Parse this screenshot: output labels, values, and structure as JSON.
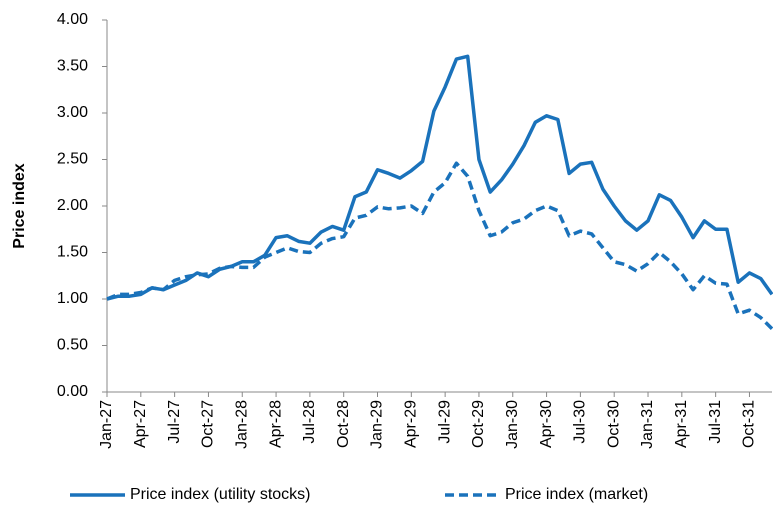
{
  "chart_data": {
    "type": "line",
    "y_label": "Price index",
    "categories": [
      "Jan-27",
      null,
      null,
      "Apr-27",
      null,
      null,
      "Jul-27",
      null,
      null,
      "Oct-27",
      null,
      null,
      "Jan-28",
      null,
      null,
      "Apr-28",
      null,
      null,
      "Jul-28",
      null,
      null,
      "Oct-28",
      null,
      null,
      "Jan-29",
      null,
      null,
      "Apr-29",
      null,
      null,
      "Jul-29",
      null,
      null,
      "Oct-29",
      null,
      null,
      "Jan-30",
      null,
      null,
      "Apr-30",
      null,
      null,
      "Jul-30",
      null,
      null,
      "Oct-30",
      null,
      null,
      "Jan-31",
      null,
      null,
      "Apr-31",
      null,
      null,
      "Jul-31",
      null,
      null,
      "Oct-31",
      null,
      null
    ],
    "series": [
      {
        "name": "Price index (utility stocks)",
        "color": "#1a72bb",
        "dash": false,
        "values": [
          1.0,
          1.03,
          1.03,
          1.05,
          1.12,
          1.1,
          1.15,
          1.2,
          1.28,
          1.24,
          1.32,
          1.35,
          1.4,
          1.4,
          1.47,
          1.66,
          1.68,
          1.62,
          1.6,
          1.72,
          1.78,
          1.74,
          2.1,
          2.15,
          2.39,
          2.35,
          2.3,
          2.38,
          2.48,
          3.02,
          3.28,
          3.58,
          3.61,
          2.5,
          2.15,
          2.28,
          2.45,
          2.65,
          2.9,
          2.97,
          2.93,
          2.35,
          2.45,
          2.47,
          2.18,
          2.0,
          1.84,
          1.74,
          1.84,
          2.12,
          2.06,
          1.88,
          1.66,
          1.84,
          1.75,
          1.75,
          1.18,
          1.28,
          1.22,
          1.05
        ]
      },
      {
        "name": "Price index (market)",
        "color": "#1a72bb",
        "dash": true,
        "values": [
          1.0,
          1.05,
          1.05,
          1.07,
          1.12,
          1.1,
          1.2,
          1.24,
          1.26,
          1.27,
          1.33,
          1.35,
          1.34,
          1.34,
          1.45,
          1.5,
          1.55,
          1.51,
          1.5,
          1.6,
          1.65,
          1.67,
          1.87,
          1.9,
          1.99,
          1.97,
          1.98,
          2.0,
          1.92,
          2.15,
          2.25,
          2.46,
          2.32,
          1.95,
          1.68,
          1.72,
          1.82,
          1.86,
          1.95,
          2.0,
          1.95,
          1.68,
          1.73,
          1.7,
          1.55,
          1.4,
          1.37,
          1.3,
          1.38,
          1.5,
          1.4,
          1.27,
          1.1,
          1.25,
          1.17,
          1.16,
          0.84,
          0.88,
          0.8,
          0.68
        ]
      }
    ],
    "ylim": [
      0,
      4
    ],
    "yticks": [
      {
        "value": 0,
        "label": "0.00"
      },
      {
        "value": 0.5,
        "label": "0.50"
      },
      {
        "value": 1,
        "label": "1.00"
      },
      {
        "value": 1.5,
        "label": "1.50"
      },
      {
        "value": 2,
        "label": "2.00"
      },
      {
        "value": 2.5,
        "label": "2.50"
      },
      {
        "value": 3,
        "label": "3.00"
      },
      {
        "value": 3.5,
        "label": "3.50"
      },
      {
        "value": 4,
        "label": "4.00"
      }
    ],
    "grid": false,
    "legend": "bottom"
  }
}
